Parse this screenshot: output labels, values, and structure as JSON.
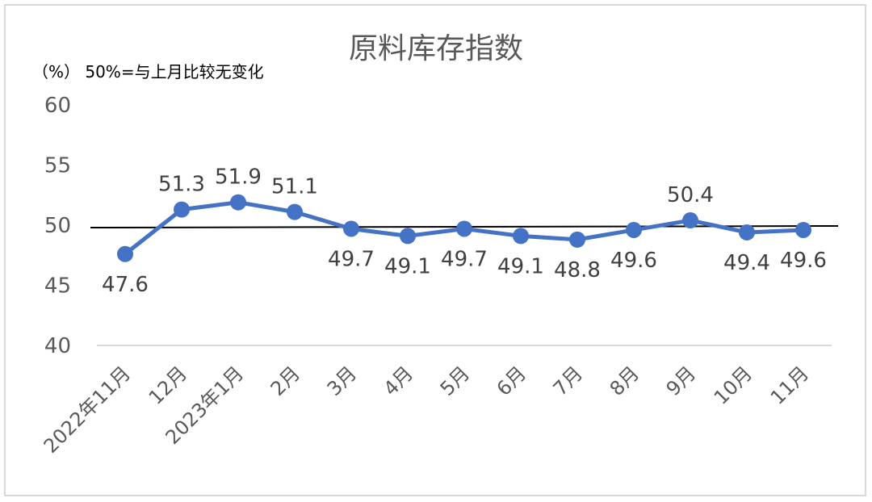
{
  "chart_data": {
    "type": "line",
    "title": "原料库存指数",
    "note": "（%） 50%=与上月比较无变化",
    "categories": [
      "2022年11月",
      "12月",
      "2023年1月",
      "2月",
      "3月",
      "4月",
      "5月",
      "6月",
      "7月",
      "8月",
      "9月",
      "10月",
      "11月"
    ],
    "series": [
      {
        "values": [
          47.6,
          51.3,
          51.9,
          51.1,
          49.7,
          49.1,
          49.7,
          49.1,
          48.8,
          49.6,
          50.4,
          49.4,
          49.6
        ],
        "color": "#4472c4"
      }
    ],
    "data_labels": [
      "47.6",
      "51.3",
      "51.9",
      "51.1",
      "49.7",
      "49.1",
      "49.7",
      "49.1",
      "48.8",
      "49.6",
      "50.4",
      "49.4",
      "49.6"
    ],
    "data_label_position": [
      "below",
      "above",
      "above",
      "above",
      "below",
      "below",
      "below",
      "below",
      "below",
      "below",
      "above",
      "below",
      "below"
    ],
    "ylim": [
      40,
      60
    ],
    "yticks": [
      40,
      45,
      50,
      55,
      60
    ],
    "ytick_labels": [
      "40",
      "45",
      "50",
      "55",
      "60"
    ],
    "reference_line": {
      "value": 50,
      "color": "#000000"
    },
    "grid": false,
    "legend": "none",
    "colors": {
      "line": "#4472c4",
      "axis": "#d9d9d9",
      "text": "#595959"
    }
  }
}
